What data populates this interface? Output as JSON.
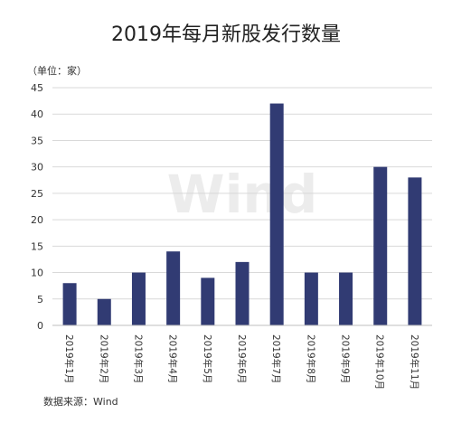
{
  "colors": {
    "bar": "#313b73",
    "grid": "#d9d9d9",
    "text": "#333333"
  },
  "watermark": "Wind",
  "source": "数据来源：Wind",
  "chart_data": {
    "type": "bar",
    "title": "2019年每月新股发行数量",
    "unit_label": "（单位：家）",
    "categories": [
      "2019年1月",
      "2019年2月",
      "2019年3月",
      "2019年4月",
      "2019年5月",
      "2019年6月",
      "2019年7月",
      "2019年8月",
      "2019年9月",
      "2019年10月",
      "2019年11月"
    ],
    "values": [
      8,
      5,
      10,
      14,
      9,
      12,
      42,
      10,
      10,
      30,
      28
    ],
    "ylim": [
      0,
      45
    ],
    "yticks": [
      0,
      5,
      10,
      15,
      20,
      25,
      30,
      35,
      40,
      45
    ],
    "grid": true,
    "legend": "none"
  }
}
